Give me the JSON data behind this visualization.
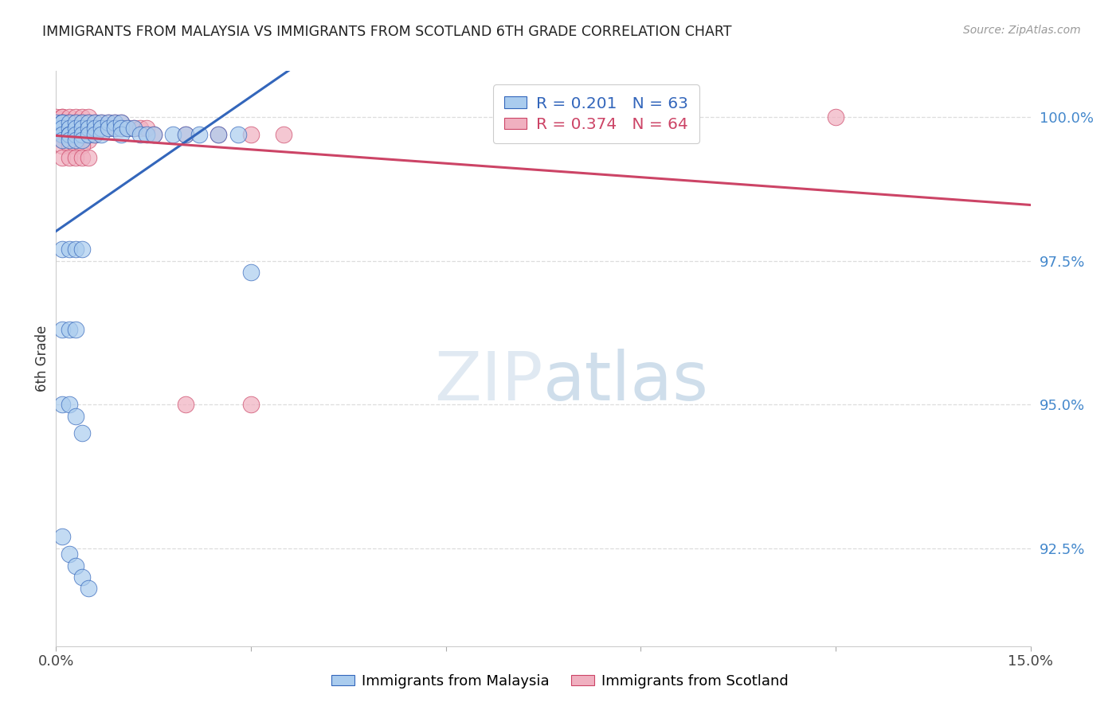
{
  "title": "IMMIGRANTS FROM MALAYSIA VS IMMIGRANTS FROM SCOTLAND 6TH GRADE CORRELATION CHART",
  "source": "Source: ZipAtlas.com",
  "ylabel": "6th Grade",
  "yaxis_labels": [
    "100.0%",
    "97.5%",
    "95.0%",
    "92.5%"
  ],
  "yaxis_values": [
    1.0,
    0.975,
    0.95,
    0.925
  ],
  "xmin": 0.0,
  "xmax": 0.15,
  "ymin": 0.908,
  "ymax": 1.008,
  "malaysia_R": 0.201,
  "malaysia_N": 63,
  "scotland_R": 0.374,
  "scotland_N": 64,
  "malaysia_color": "#aaccee",
  "scotland_color": "#f0b0c0",
  "malaysia_line_color": "#3366bb",
  "scotland_line_color": "#cc4466",
  "watermark_color": "#ddeeff",
  "malaysia_x": [
    0.0,
    0.0,
    0.001,
    0.001,
    0.001,
    0.001,
    0.001,
    0.002,
    0.002,
    0.002,
    0.002,
    0.002,
    0.003,
    0.003,
    0.003,
    0.003,
    0.004,
    0.004,
    0.004,
    0.004,
    0.005,
    0.005,
    0.005,
    0.006,
    0.006,
    0.006,
    0.007,
    0.007,
    0.007,
    0.008,
    0.008,
    0.009,
    0.009,
    0.01,
    0.01,
    0.01,
    0.011,
    0.012,
    0.013,
    0.014,
    0.015,
    0.018,
    0.02,
    0.022,
    0.025,
    0.028,
    0.001,
    0.002,
    0.003,
    0.004,
    0.001,
    0.002,
    0.003,
    0.001,
    0.002,
    0.003,
    0.004,
    0.001,
    0.002,
    0.003,
    0.004,
    0.005,
    0.03
  ],
  "malaysia_y": [
    0.999,
    0.998,
    0.999,
    0.999,
    0.998,
    0.997,
    0.996,
    0.999,
    0.998,
    0.997,
    0.997,
    0.996,
    0.999,
    0.998,
    0.997,
    0.996,
    0.999,
    0.998,
    0.997,
    0.996,
    0.999,
    0.998,
    0.997,
    0.999,
    0.998,
    0.997,
    0.999,
    0.998,
    0.997,
    0.999,
    0.998,
    0.999,
    0.998,
    0.999,
    0.998,
    0.997,
    0.998,
    0.998,
    0.997,
    0.997,
    0.997,
    0.997,
    0.997,
    0.997,
    0.997,
    0.997,
    0.977,
    0.977,
    0.977,
    0.977,
    0.963,
    0.963,
    0.963,
    0.95,
    0.95,
    0.948,
    0.945,
    0.927,
    0.924,
    0.922,
    0.92,
    0.918,
    0.973
  ],
  "scotland_x": [
    0.0,
    0.0,
    0.001,
    0.001,
    0.001,
    0.001,
    0.002,
    0.002,
    0.002,
    0.002,
    0.002,
    0.003,
    0.003,
    0.003,
    0.003,
    0.004,
    0.004,
    0.004,
    0.004,
    0.005,
    0.005,
    0.005,
    0.006,
    0.006,
    0.007,
    0.007,
    0.008,
    0.008,
    0.009,
    0.009,
    0.01,
    0.01,
    0.011,
    0.012,
    0.013,
    0.014,
    0.001,
    0.002,
    0.003,
    0.004,
    0.005,
    0.006,
    0.001,
    0.002,
    0.003,
    0.004,
    0.005,
    0.001,
    0.002,
    0.003,
    0.004,
    0.001,
    0.002,
    0.003,
    0.004,
    0.005,
    0.015,
    0.02,
    0.025,
    0.03,
    0.035,
    0.02,
    0.03,
    0.12
  ],
  "scotland_y": [
    1.0,
    0.999,
    1.0,
    1.0,
    0.999,
    0.999,
    1.0,
    0.999,
    0.999,
    0.998,
    0.998,
    1.0,
    0.999,
    0.999,
    0.998,
    1.0,
    0.999,
    0.999,
    0.998,
    1.0,
    0.999,
    0.998,
    0.999,
    0.998,
    0.999,
    0.998,
    0.999,
    0.998,
    0.999,
    0.998,
    0.999,
    0.998,
    0.998,
    0.998,
    0.998,
    0.998,
    0.997,
    0.997,
    0.997,
    0.997,
    0.997,
    0.997,
    0.996,
    0.996,
    0.996,
    0.996,
    0.996,
    0.995,
    0.995,
    0.995,
    0.995,
    0.993,
    0.993,
    0.993,
    0.993,
    0.993,
    0.997,
    0.997,
    0.997,
    0.997,
    0.997,
    0.95,
    0.95,
    1.0
  ]
}
